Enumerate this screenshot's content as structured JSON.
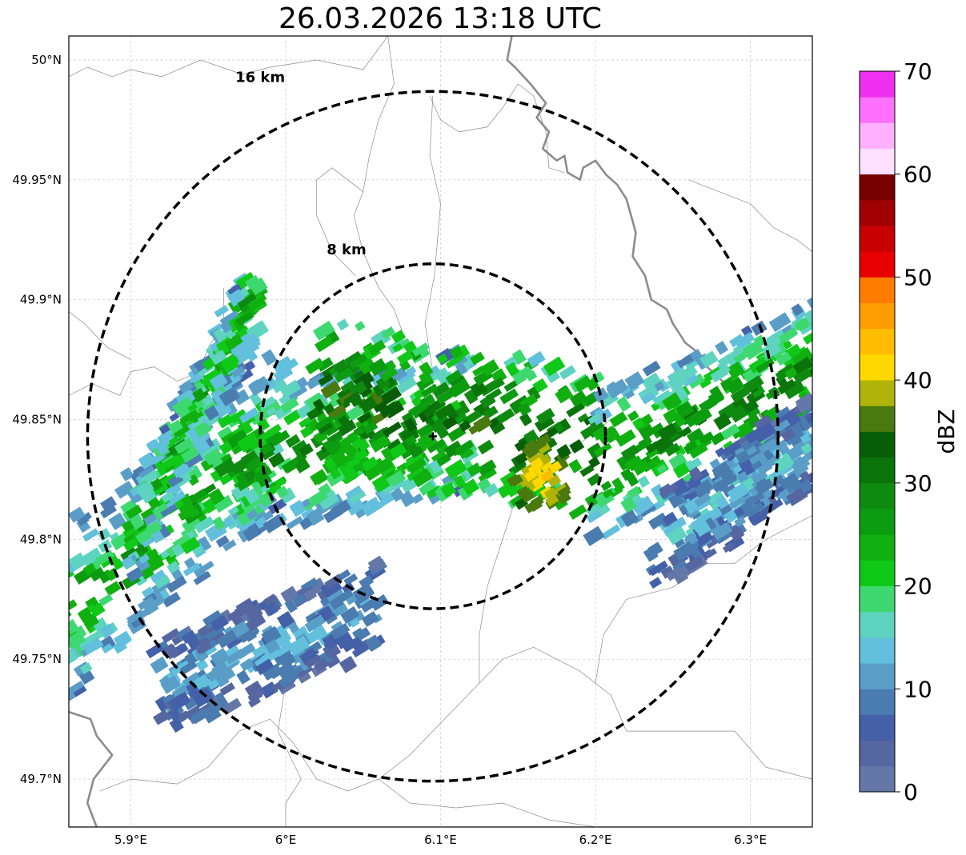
{
  "title": "26.03.2026 13:18 UTC",
  "map": {
    "extent": {
      "lon": [
        5.86,
        6.34
      ],
      "lat": [
        49.68,
        50.01
      ]
    },
    "lon_ticks": [
      {
        "value": 5.9,
        "label": "5.9°E"
      },
      {
        "value": 6.0,
        "label": "6°E"
      },
      {
        "value": 6.1,
        "label": "6.1°E"
      },
      {
        "value": 6.2,
        "label": "6.2°E"
      },
      {
        "value": 6.3,
        "label": "6.3°E"
      }
    ],
    "lat_ticks": [
      {
        "value": 50.0,
        "label": "50°N"
      },
      {
        "value": 49.95,
        "label": "49.95°N"
      },
      {
        "value": 49.9,
        "label": "49.9°N"
      },
      {
        "value": 49.85,
        "label": "49.85°N"
      },
      {
        "value": 49.8,
        "label": "49.8°N"
      },
      {
        "value": 49.75,
        "label": "49.75°N"
      },
      {
        "value": 49.7,
        "label": "49.7°N"
      }
    ],
    "radar_site": {
      "lon": 6.095,
      "lat": 49.843
    },
    "range_rings": [
      {
        "label": "8 km",
        "radius_km": 8
      },
      {
        "label": "16 km",
        "radius_km": 16
      }
    ],
    "grid": true
  },
  "colorbar": {
    "unit": "dBZ",
    "min": 0,
    "max": 70,
    "ticks": [
      {
        "value": 0,
        "label": "0"
      },
      {
        "value": 10,
        "label": "10"
      },
      {
        "value": 20,
        "label": "20"
      },
      {
        "value": 30,
        "label": "30"
      },
      {
        "value": 40,
        "label": "40"
      },
      {
        "value": 50,
        "label": "50"
      },
      {
        "value": 60,
        "label": "60"
      },
      {
        "value": 70,
        "label": "70"
      }
    ],
    "colors": [
      "#6477a8",
      "#5566a0",
      "#4460a8",
      "#4a7cb0",
      "#5a9ec8",
      "#62c0dc",
      "#5ed4c0",
      "#3ed870",
      "#10c818",
      "#10b010",
      "#0c9c10",
      "#0e8a10",
      "#0a740a",
      "#085e08",
      "#4a7a0e",
      "#b0b40a",
      "#ffd800",
      "#ffbc00",
      "#ff9c00",
      "#ff7c00",
      "#e80000",
      "#c80000",
      "#a00000",
      "#780000",
      "#ffe0ff",
      "#ffb0ff",
      "#ff70ff",
      "#f030f0"
    ]
  }
}
